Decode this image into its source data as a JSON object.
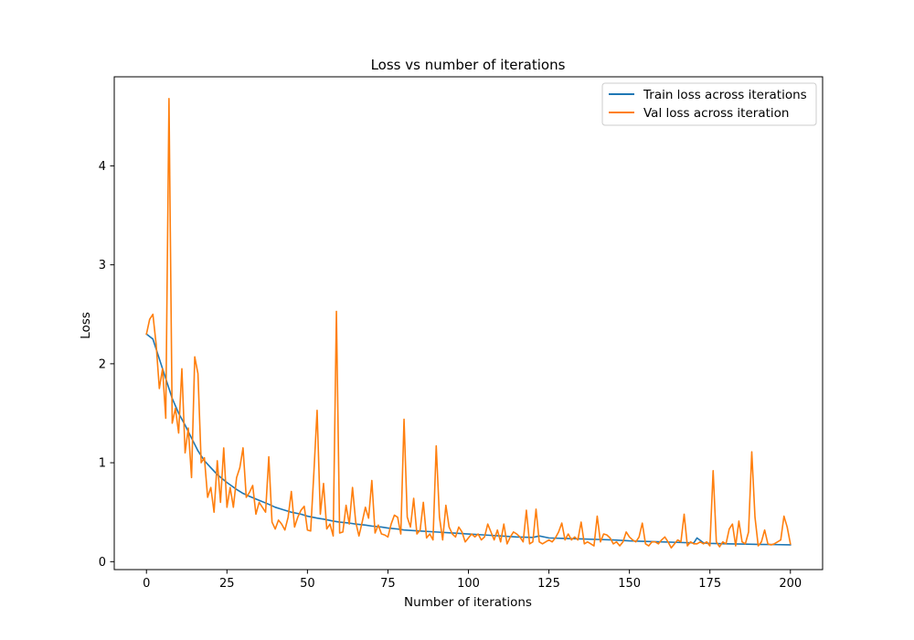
{
  "chart_data": {
    "type": "line",
    "title": "Loss vs number of iterations",
    "xlabel": "Number of iterations",
    "ylabel": "Loss",
    "xlim": [
      -10,
      210
    ],
    "ylim": [
      -0.08,
      4.9
    ],
    "xticks": [
      0,
      25,
      50,
      75,
      100,
      125,
      150,
      175,
      200
    ],
    "yticks": [
      0,
      1,
      2,
      3,
      4
    ],
    "legend_position": "top-right",
    "series": [
      {
        "name": "Train loss across iterations",
        "color": "#1f77b4",
        "points": [
          [
            0,
            2.3
          ],
          [
            2,
            2.25
          ],
          [
            4,
            2.05
          ],
          [
            6,
            1.85
          ],
          [
            8,
            1.65
          ],
          [
            10,
            1.5
          ],
          [
            12,
            1.38
          ],
          [
            14,
            1.25
          ],
          [
            16,
            1.12
          ],
          [
            18,
            1.02
          ],
          [
            20,
            0.95
          ],
          [
            22,
            0.88
          ],
          [
            25,
            0.8
          ],
          [
            28,
            0.73
          ],
          [
            30,
            0.69
          ],
          [
            32,
            0.66
          ],
          [
            35,
            0.62
          ],
          [
            38,
            0.58
          ],
          [
            40,
            0.55
          ],
          [
            42,
            0.53
          ],
          [
            45,
            0.5
          ],
          [
            48,
            0.48
          ],
          [
            50,
            0.46
          ],
          [
            53,
            0.44
          ],
          [
            55,
            0.43
          ],
          [
            58,
            0.41
          ],
          [
            60,
            0.4
          ],
          [
            63,
            0.39
          ],
          [
            65,
            0.38
          ],
          [
            68,
            0.37
          ],
          [
            70,
            0.36
          ],
          [
            73,
            0.35
          ],
          [
            75,
            0.34
          ],
          [
            78,
            0.33
          ],
          [
            80,
            0.32
          ],
          [
            85,
            0.31
          ],
          [
            90,
            0.3
          ],
          [
            95,
            0.29
          ],
          [
            100,
            0.28
          ],
          [
            105,
            0.27
          ],
          [
            110,
            0.26
          ],
          [
            115,
            0.25
          ],
          [
            120,
            0.245
          ],
          [
            122,
            0.26
          ],
          [
            125,
            0.24
          ],
          [
            130,
            0.235
          ],
          [
            135,
            0.23
          ],
          [
            140,
            0.225
          ],
          [
            145,
            0.22
          ],
          [
            150,
            0.21
          ],
          [
            155,
            0.205
          ],
          [
            160,
            0.2
          ],
          [
            165,
            0.195
          ],
          [
            170,
            0.19
          ],
          [
            171,
            0.24
          ],
          [
            173,
            0.19
          ],
          [
            175,
            0.185
          ],
          [
            180,
            0.18
          ],
          [
            185,
            0.178
          ],
          [
            190,
            0.175
          ],
          [
            195,
            0.173
          ],
          [
            200,
            0.17
          ]
        ]
      },
      {
        "name": "Val loss across iteration",
        "color": "#ff7f0e",
        "points": [
          [
            0,
            2.3
          ],
          [
            1,
            2.45
          ],
          [
            2,
            2.5
          ],
          [
            3,
            2.2
          ],
          [
            4,
            1.75
          ],
          [
            5,
            1.95
          ],
          [
            6,
            1.45
          ],
          [
            7,
            4.68
          ],
          [
            8,
            1.4
          ],
          [
            9,
            1.55
          ],
          [
            10,
            1.3
          ],
          [
            11,
            1.95
          ],
          [
            12,
            1.1
          ],
          [
            13,
            1.35
          ],
          [
            14,
            0.85
          ],
          [
            15,
            2.07
          ],
          [
            16,
            1.9
          ],
          [
            17,
            1.0
          ],
          [
            18,
            1.05
          ],
          [
            19,
            0.65
          ],
          [
            20,
            0.75
          ],
          [
            21,
            0.5
          ],
          [
            22,
            1.02
          ],
          [
            23,
            0.6
          ],
          [
            24,
            1.15
          ],
          [
            25,
            0.55
          ],
          [
            26,
            0.75
          ],
          [
            27,
            0.55
          ],
          [
            28,
            0.85
          ],
          [
            29,
            0.95
          ],
          [
            30,
            1.15
          ],
          [
            31,
            0.65
          ],
          [
            32,
            0.7
          ],
          [
            33,
            0.77
          ],
          [
            34,
            0.48
          ],
          [
            35,
            0.6
          ],
          [
            36,
            0.55
          ],
          [
            37,
            0.5
          ],
          [
            38,
            1.06
          ],
          [
            39,
            0.4
          ],
          [
            40,
            0.33
          ],
          [
            41,
            0.42
          ],
          [
            42,
            0.38
          ],
          [
            43,
            0.32
          ],
          [
            44,
            0.45
          ],
          [
            45,
            0.71
          ],
          [
            46,
            0.35
          ],
          [
            47,
            0.45
          ],
          [
            48,
            0.52
          ],
          [
            49,
            0.56
          ],
          [
            50,
            0.32
          ],
          [
            51,
            0.31
          ],
          [
            52,
            0.9
          ],
          [
            53,
            1.53
          ],
          [
            54,
            0.48
          ],
          [
            55,
            0.79
          ],
          [
            56,
            0.33
          ],
          [
            57,
            0.38
          ],
          [
            58,
            0.26
          ],
          [
            59,
            2.53
          ],
          [
            60,
            0.29
          ],
          [
            61,
            0.3
          ],
          [
            62,
            0.57
          ],
          [
            63,
            0.38
          ],
          [
            64,
            0.75
          ],
          [
            65,
            0.4
          ],
          [
            66,
            0.26
          ],
          [
            67,
            0.4
          ],
          [
            68,
            0.55
          ],
          [
            69,
            0.44
          ],
          [
            70,
            0.82
          ],
          [
            71,
            0.29
          ],
          [
            72,
            0.37
          ],
          [
            73,
            0.28
          ],
          [
            74,
            0.27
          ],
          [
            75,
            0.25
          ],
          [
            76,
            0.38
          ],
          [
            77,
            0.47
          ],
          [
            78,
            0.45
          ],
          [
            79,
            0.28
          ],
          [
            80,
            1.44
          ],
          [
            81,
            0.45
          ],
          [
            82,
            0.35
          ],
          [
            83,
            0.64
          ],
          [
            84,
            0.28
          ],
          [
            85,
            0.32
          ],
          [
            86,
            0.6
          ],
          [
            87,
            0.24
          ],
          [
            88,
            0.28
          ],
          [
            89,
            0.22
          ],
          [
            90,
            1.17
          ],
          [
            91,
            0.45
          ],
          [
            92,
            0.22
          ],
          [
            93,
            0.57
          ],
          [
            94,
            0.35
          ],
          [
            95,
            0.28
          ],
          [
            96,
            0.25
          ],
          [
            97,
            0.35
          ],
          [
            98,
            0.3
          ],
          [
            99,
            0.2
          ],
          [
            100,
            0.24
          ],
          [
            101,
            0.28
          ],
          [
            102,
            0.25
          ],
          [
            103,
            0.28
          ],
          [
            104,
            0.22
          ],
          [
            105,
            0.25
          ],
          [
            106,
            0.38
          ],
          [
            107,
            0.3
          ],
          [
            108,
            0.22
          ],
          [
            109,
            0.32
          ],
          [
            110,
            0.2
          ],
          [
            111,
            0.38
          ],
          [
            112,
            0.18
          ],
          [
            113,
            0.25
          ],
          [
            114,
            0.3
          ],
          [
            115,
            0.28
          ],
          [
            116,
            0.25
          ],
          [
            117,
            0.2
          ],
          [
            118,
            0.52
          ],
          [
            119,
            0.18
          ],
          [
            120,
            0.2
          ],
          [
            121,
            0.53
          ],
          [
            122,
            0.2
          ],
          [
            123,
            0.18
          ],
          [
            124,
            0.2
          ],
          [
            125,
            0.22
          ],
          [
            126,
            0.2
          ],
          [
            127,
            0.24
          ],
          [
            128,
            0.3
          ],
          [
            129,
            0.39
          ],
          [
            130,
            0.22
          ],
          [
            131,
            0.28
          ],
          [
            132,
            0.22
          ],
          [
            133,
            0.25
          ],
          [
            134,
            0.22
          ],
          [
            135,
            0.4
          ],
          [
            136,
            0.18
          ],
          [
            137,
            0.2
          ],
          [
            138,
            0.18
          ],
          [
            139,
            0.16
          ],
          [
            140,
            0.46
          ],
          [
            141,
            0.2
          ],
          [
            142,
            0.28
          ],
          [
            143,
            0.27
          ],
          [
            144,
            0.24
          ],
          [
            145,
            0.18
          ],
          [
            146,
            0.2
          ],
          [
            147,
            0.16
          ],
          [
            148,
            0.2
          ],
          [
            149,
            0.3
          ],
          [
            150,
            0.25
          ],
          [
            151,
            0.22
          ],
          [
            152,
            0.2
          ],
          [
            153,
            0.25
          ],
          [
            154,
            0.39
          ],
          [
            155,
            0.18
          ],
          [
            156,
            0.16
          ],
          [
            157,
            0.2
          ],
          [
            158,
            0.2
          ],
          [
            159,
            0.18
          ],
          [
            160,
            0.22
          ],
          [
            161,
            0.25
          ],
          [
            162,
            0.2
          ],
          [
            163,
            0.14
          ],
          [
            164,
            0.18
          ],
          [
            165,
            0.22
          ],
          [
            166,
            0.2
          ],
          [
            167,
            0.48
          ],
          [
            168,
            0.16
          ],
          [
            169,
            0.2
          ],
          [
            170,
            0.18
          ],
          [
            171,
            0.18
          ],
          [
            172,
            0.2
          ],
          [
            173,
            0.18
          ],
          [
            174,
            0.2
          ],
          [
            175,
            0.16
          ],
          [
            176,
            0.92
          ],
          [
            177,
            0.2
          ],
          [
            178,
            0.15
          ],
          [
            179,
            0.2
          ],
          [
            180,
            0.18
          ],
          [
            181,
            0.33
          ],
          [
            182,
            0.38
          ],
          [
            183,
            0.16
          ],
          [
            184,
            0.41
          ],
          [
            185,
            0.2
          ],
          [
            186,
            0.18
          ],
          [
            187,
            0.3
          ],
          [
            188,
            1.11
          ],
          [
            189,
            0.45
          ],
          [
            190,
            0.16
          ],
          [
            191,
            0.2
          ],
          [
            192,
            0.32
          ],
          [
            193,
            0.18
          ],
          [
            194,
            0.17
          ],
          [
            195,
            0.18
          ],
          [
            196,
            0.2
          ],
          [
            197,
            0.22
          ],
          [
            198,
            0.46
          ],
          [
            199,
            0.35
          ],
          [
            200,
            0.18
          ]
        ]
      }
    ]
  }
}
